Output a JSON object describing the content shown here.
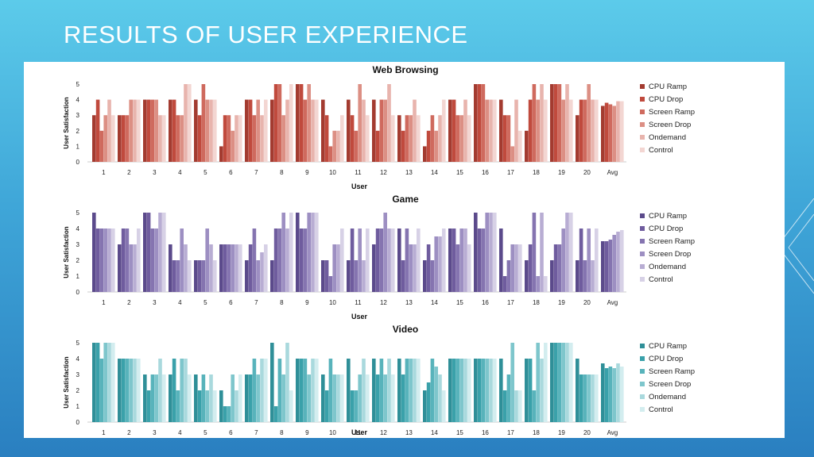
{
  "slide": {
    "title": "RESULTS OF USER EXPERIENCE"
  },
  "chart_data": [
    {
      "type": "bar",
      "title": "Web Browsing",
      "xlabel": "User",
      "ylabel": "User Satisfaction",
      "ylim": [
        0,
        5
      ],
      "yticks": [
        "0",
        "1",
        "2",
        "3",
        "4",
        "5"
      ],
      "categories": [
        "1",
        "2",
        "3",
        "4",
        "5",
        "6",
        "7",
        "8",
        "9",
        "10",
        "11",
        "12",
        "13",
        "14",
        "15",
        "16",
        "17",
        "18",
        "19",
        "20",
        "Avg"
      ],
      "colors": [
        "#a33b30",
        "#c04a3d",
        "#cf6a5e",
        "#dc8f84",
        "#e8b4ad",
        "#f3d6d2"
      ],
      "series": [
        {
          "name": "CPU Ramp",
          "values": [
            3,
            3,
            4,
            4,
            4,
            1,
            4,
            4,
            5,
            4,
            4,
            4,
            3,
            1,
            4,
            5,
            4,
            2,
            5,
            3,
            3.6
          ]
        },
        {
          "name": "CPU Drop",
          "values": [
            4,
            3,
            4,
            4,
            3,
            3,
            4,
            5,
            5,
            3,
            3,
            2,
            2,
            2,
            4,
            5,
            3,
            4,
            5,
            4,
            3.8
          ]
        },
        {
          "name": "Screen Ramp",
          "values": [
            2,
            3,
            4,
            3,
            5,
            3,
            3,
            5,
            4,
            1,
            2,
            4,
            3,
            3,
            3,
            5,
            3,
            5,
            5,
            4,
            3.7
          ]
        },
        {
          "name": "Screen Drop",
          "values": [
            3,
            4,
            4,
            3,
            4,
            2,
            4,
            3,
            5,
            2,
            5,
            4,
            3,
            2,
            3,
            4,
            1,
            4,
            4,
            5,
            3.6
          ]
        },
        {
          "name": "Ondemand",
          "values": [
            4,
            4,
            3,
            5,
            4,
            3,
            3,
            4,
            4,
            2,
            4,
            5,
            4,
            3,
            4,
            4,
            4,
            5,
            5,
            4,
            3.9
          ]
        },
        {
          "name": "Control",
          "values": [
            3,
            4,
            3,
            5,
            4,
            3,
            4,
            5,
            4,
            3,
            3,
            3,
            3,
            4,
            3,
            4,
            2,
            4,
            4,
            4,
            3.9
          ]
        }
      ]
    },
    {
      "type": "bar",
      "title": "Game",
      "xlabel": "User",
      "ylabel": "User Satisfaction",
      "ylim": [
        0,
        5
      ],
      "yticks": [
        "0",
        "1",
        "2",
        "3",
        "4",
        "5"
      ],
      "categories": [
        "1",
        "2",
        "3",
        "4",
        "5",
        "6",
        "7",
        "8",
        "9",
        "10",
        "11",
        "12",
        "13",
        "14",
        "15",
        "16",
        "17",
        "18",
        "19",
        "20",
        "Avg"
      ],
      "colors": [
        "#5b4a8b",
        "#6f5c9e",
        "#8574b0",
        "#9d8fc2",
        "#b8add3",
        "#d7d1e6"
      ],
      "series": [
        {
          "name": "CPU Ramp",
          "values": [
            5,
            3,
            5,
            3,
            2,
            3,
            2,
            2,
            5,
            2,
            2,
            3,
            4,
            2,
            4,
            5,
            4,
            2,
            2,
            2,
            3.2
          ]
        },
        {
          "name": "CPU Drop",
          "values": [
            4,
            4,
            5,
            2,
            2,
            3,
            3,
            4,
            4,
            2,
            4,
            4,
            2,
            3,
            4,
            4,
            1,
            3,
            3,
            4,
            3.2
          ]
        },
        {
          "name": "Screen Ramp",
          "values": [
            4,
            4,
            4,
            2,
            2,
            3,
            4,
            4,
            4,
            1,
            2,
            4,
            4,
            2,
            3,
            4,
            2,
            5,
            3,
            2,
            3.3
          ]
        },
        {
          "name": "Screen Drop",
          "values": [
            4,
            3,
            4,
            4,
            4,
            3,
            2,
            5,
            5,
            3,
            4,
            5,
            3,
            3.5,
            4,
            5,
            3,
            1,
            4,
            4,
            3.6
          ]
        },
        {
          "name": "Ondemand",
          "values": [
            4,
            3,
            5,
            3,
            3,
            3,
            2.5,
            4,
            5,
            3,
            2,
            4,
            3,
            3.5,
            4,
            5,
            3,
            5,
            5,
            2,
            3.8
          ]
        },
        {
          "name": "Control",
          "values": [
            4,
            4,
            5,
            2,
            2,
            3,
            3,
            5,
            5,
            4,
            4,
            4,
            4,
            4,
            3,
            5,
            3,
            1,
            5,
            4,
            3.9
          ]
        }
      ]
    },
    {
      "type": "bar",
      "title": "Video",
      "xlabel": "User",
      "ylabel": "User Satisfaction",
      "ylim": [
        0,
        5
      ],
      "yticks": [
        "0",
        "1",
        "2",
        "3",
        "4",
        "5"
      ],
      "categories": [
        "1",
        "2",
        "3",
        "4",
        "5",
        "6",
        "7",
        "8",
        "9",
        "10",
        "11",
        "12",
        "13",
        "14",
        "15",
        "16",
        "17",
        "18",
        "19",
        "20",
        "Avg"
      ],
      "colors": [
        "#2f8f98",
        "#3aa1aa",
        "#58b3bb",
        "#7ec6cc",
        "#a9d9dd",
        "#d3edef"
      ],
      "series": [
        {
          "name": "CPU Ramp",
          "values": [
            5,
            4,
            3,
            3,
            3,
            2,
            3,
            5,
            4,
            3,
            4,
            4,
            4,
            2,
            4,
            4,
            4,
            4,
            5,
            4,
            3.7
          ]
        },
        {
          "name": "CPU Drop",
          "values": [
            5,
            4,
            2,
            4,
            2,
            1,
            3,
            1,
            4,
            2,
            2,
            3,
            3,
            2.5,
            4,
            4,
            2,
            4,
            5,
            3,
            3.4
          ]
        },
        {
          "name": "Screen Ramp",
          "values": [
            4,
            4,
            3,
            2,
            3,
            1,
            4,
            4,
            4,
            4,
            2,
            4,
            4,
            4,
            4,
            4,
            3,
            2,
            5,
            3,
            3.5
          ]
        },
        {
          "name": "Screen Drop",
          "values": [
            5,
            4,
            3,
            4,
            2,
            3,
            3,
            3,
            3,
            3,
            3,
            3,
            4,
            3.5,
            4,
            4,
            5,
            5,
            5,
            3,
            3.4
          ]
        },
        {
          "name": "Ondemand",
          "values": [
            5,
            4,
            4,
            4,
            3,
            2,
            4,
            5,
            4,
            3,
            4,
            4,
            4,
            3,
            4,
            4,
            2,
            4,
            5,
            3,
            3.7
          ]
        },
        {
          "name": "Control",
          "values": [
            5,
            4,
            3,
            3,
            2,
            3,
            4,
            2,
            4,
            3,
            3,
            3,
            4,
            2,
            4,
            4,
            2,
            5,
            5,
            3,
            3.5
          ]
        }
      ]
    }
  ]
}
